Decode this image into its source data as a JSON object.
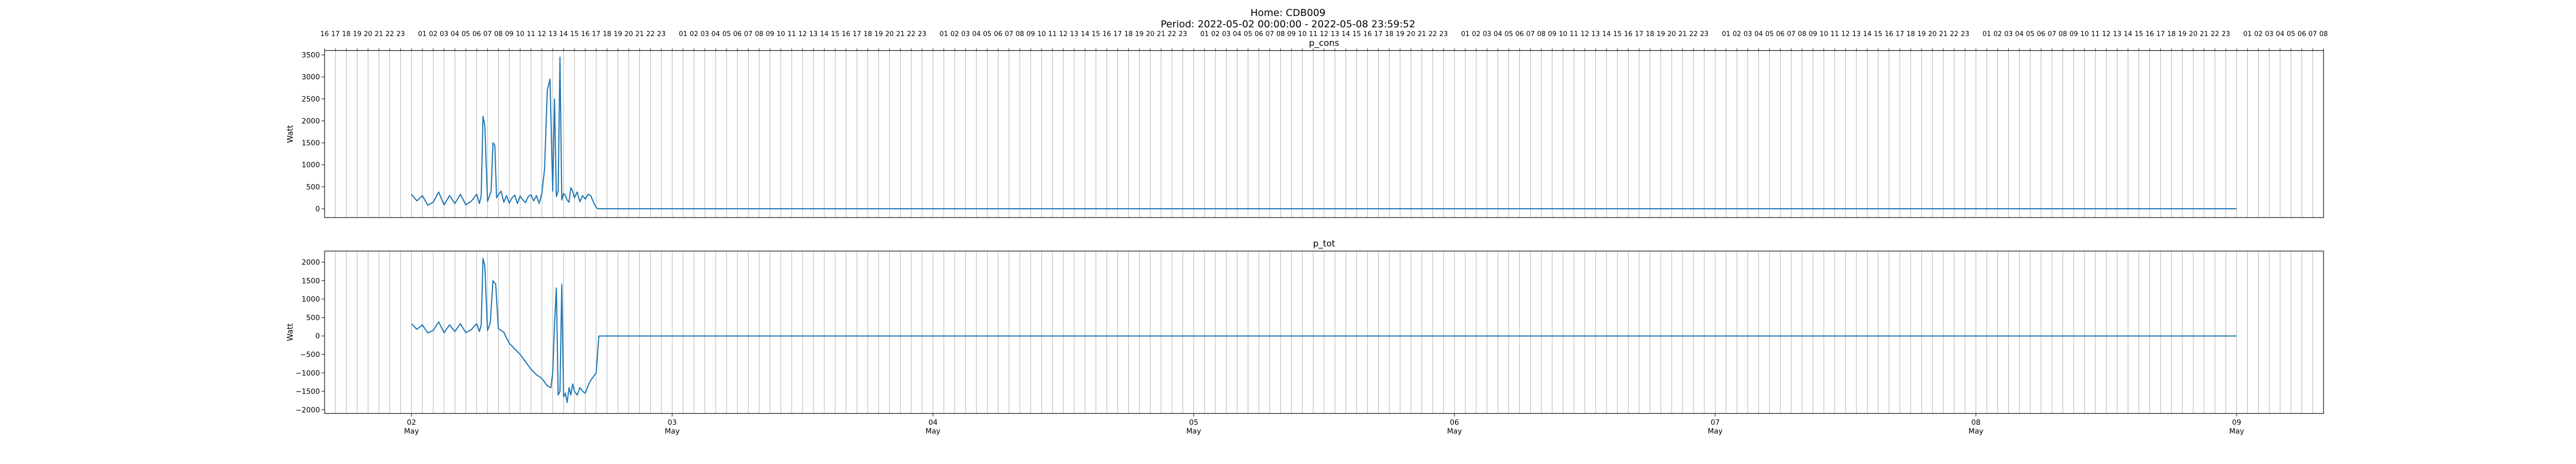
{
  "suptitle_line1": "Home: CDB009",
  "suptitle_line2": "Period: 2022-05-02 00:00:00 - 2022-05-08 23:59:52",
  "colors": {
    "line": "#1f77b4",
    "grid": "#b0b0b0",
    "axes": "#000000"
  },
  "chart_data": [
    {
      "type": "line",
      "title": "p_cons",
      "ylabel": "Watt",
      "xlim": [
        "2022-05-01 16:00",
        "2022-05-09 08:00"
      ],
      "ylim": [
        -200,
        3600
      ],
      "yticks": [
        0,
        500,
        1000,
        1500,
        2000,
        2500,
        3000,
        3500
      ],
      "grid": "vertical lines every hour",
      "top_axis_ticks": "hour of day labels (16 ... 23, 01 ... 23, 01 ... 08), every hour except 00",
      "series": [
        {
          "x": [
            "2022-05-02 00:00",
            "2022-05-02 00:30",
            "2022-05-02 01:00",
            "2022-05-02 01:30",
            "2022-05-02 02:00",
            "2022-05-02 02:30",
            "2022-05-02 03:00",
            "2022-05-02 03:30",
            "2022-05-02 04:00",
            "2022-05-02 04:30",
            "2022-05-02 05:00",
            "2022-05-02 05:30",
            "2022-05-02 06:00",
            "2022-05-02 06:15",
            "2022-05-02 06:25",
            "2022-05-02 06:35",
            "2022-05-02 06:45",
            "2022-05-02 07:00",
            "2022-05-02 07:20",
            "2022-05-02 07:30",
            "2022-05-02 07:40",
            "2022-05-02 07:50",
            "2022-05-02 08:00",
            "2022-05-02 08:15",
            "2022-05-02 08:30",
            "2022-05-02 08:45",
            "2022-05-02 09:00",
            "2022-05-02 09:15",
            "2022-05-02 09:30",
            "2022-05-02 09:45",
            "2022-05-02 10:00",
            "2022-05-02 10:15",
            "2022-05-02 10:30",
            "2022-05-02 10:45",
            "2022-05-02 11:00",
            "2022-05-02 11:15",
            "2022-05-02 11:30",
            "2022-05-02 11:45",
            "2022-05-02 12:00",
            "2022-05-02 12:15",
            "2022-05-02 12:30",
            "2022-05-02 12:45",
            "2022-05-02 13:00",
            "2022-05-02 13:10",
            "2022-05-02 13:20",
            "2022-05-02 13:30",
            "2022-05-02 13:40",
            "2022-05-02 13:50",
            "2022-05-02 14:00",
            "2022-05-02 14:10",
            "2022-05-02 14:20",
            "2022-05-02 14:30",
            "2022-05-02 14:40",
            "2022-05-02 14:50",
            "2022-05-02 15:00",
            "2022-05-02 15:15",
            "2022-05-02 15:30",
            "2022-05-02 15:45",
            "2022-05-02 16:00",
            "2022-05-02 16:15",
            "2022-05-02 16:30",
            "2022-05-02 16:45",
            "2022-05-02 17:00",
            "2022-05-02 17:10",
            "2022-05-02 17:20",
            "2022-05-02 17:30",
            "2022-05-02 17:45",
            "2022-05-02 18:00",
            "2022-05-08 23:59"
          ],
          "y": [
            330,
            180,
            300,
            80,
            150,
            380,
            90,
            300,
            120,
            330,
            90,
            170,
            330,
            120,
            300,
            2100,
            1900,
            170,
            400,
            1500,
            1450,
            250,
            320,
            400,
            150,
            300,
            130,
            250,
            310,
            120,
            290,
            200,
            140,
            280,
            320,
            180,
            300,
            120,
            350,
            900,
            2700,
            2950,
            400,
            2500,
            280,
            400,
            3450,
            200,
            350,
            300,
            200,
            150,
            480,
            400,
            250,
            380,
            160,
            300,
            220,
            330,
            300,
            150,
            30,
            0,
            0,
            0,
            0,
            0,
            0
          ]
        }
      ]
    },
    {
      "type": "line",
      "title": "p_tot",
      "ylabel": "Watt",
      "xlim": [
        "2022-05-01 16:00",
        "2022-05-09 08:00"
      ],
      "ylim": [
        -2100,
        2300
      ],
      "yticks": [
        -2000,
        -1500,
        -1000,
        -500,
        0,
        500,
        1000,
        1500,
        2000
      ],
      "xticks": [
        {
          "day": "02",
          "month": "May"
        },
        {
          "day": "03",
          "month": "May"
        },
        {
          "day": "04",
          "month": "May"
        },
        {
          "day": "05",
          "month": "May"
        },
        {
          "day": "06",
          "month": "May"
        },
        {
          "day": "07",
          "month": "May"
        },
        {
          "day": "08",
          "month": "May"
        },
        {
          "day": "09",
          "month": "May"
        }
      ],
      "grid": "vertical lines every hour",
      "series": [
        {
          "x": [
            "2022-05-02 00:00",
            "2022-05-02 00:30",
            "2022-05-02 01:00",
            "2022-05-02 01:30",
            "2022-05-02 02:00",
            "2022-05-02 02:30",
            "2022-05-02 03:00",
            "2022-05-02 03:30",
            "2022-05-02 04:00",
            "2022-05-02 04:30",
            "2022-05-02 05:00",
            "2022-05-02 05:30",
            "2022-05-02 06:00",
            "2022-05-02 06:15",
            "2022-05-02 06:25",
            "2022-05-02 06:35",
            "2022-05-02 06:45",
            "2022-05-02 07:00",
            "2022-05-02 07:15",
            "2022-05-02 07:30",
            "2022-05-02 07:45",
            "2022-05-02 08:00",
            "2022-05-02 08:30",
            "2022-05-02 09:00",
            "2022-05-02 09:30",
            "2022-05-02 10:00",
            "2022-05-02 10:30",
            "2022-05-02 11:00",
            "2022-05-02 11:30",
            "2022-05-02 12:00",
            "2022-05-02 12:30",
            "2022-05-02 12:50",
            "2022-05-02 13:00",
            "2022-05-02 13:10",
            "2022-05-02 13:20",
            "2022-05-02 13:30",
            "2022-05-02 13:40",
            "2022-05-02 13:50",
            "2022-05-02 14:00",
            "2022-05-02 14:10",
            "2022-05-02 14:20",
            "2022-05-02 14:30",
            "2022-05-02 14:40",
            "2022-05-02 14:50",
            "2022-05-02 15:00",
            "2022-05-02 15:15",
            "2022-05-02 15:30",
            "2022-05-02 15:45",
            "2022-05-02 16:00",
            "2022-05-02 16:15",
            "2022-05-02 16:30",
            "2022-05-02 16:45",
            "2022-05-02 17:00",
            "2022-05-02 17:15",
            "2022-05-02 17:30",
            "2022-05-02 17:45",
            "2022-05-02 18:00",
            "2022-05-08 23:59"
          ],
          "y": [
            330,
            180,
            300,
            80,
            150,
            380,
            90,
            300,
            120,
            330,
            90,
            170,
            330,
            120,
            300,
            2100,
            1900,
            150,
            350,
            1500,
            1400,
            200,
            100,
            -200,
            -350,
            -500,
            -700,
            -900,
            -1050,
            -1150,
            -1350,
            -1400,
            -1000,
            300,
            1300,
            -1600,
            -1500,
            1400,
            -1650,
            -1550,
            -1800,
            -1400,
            -1600,
            -1300,
            -1500,
            -1600,
            -1400,
            -1500,
            -1550,
            -1350,
            -1200,
            -1100,
            -1000,
            0,
            0,
            0,
            0,
            0
          ]
        }
      ]
    }
  ]
}
